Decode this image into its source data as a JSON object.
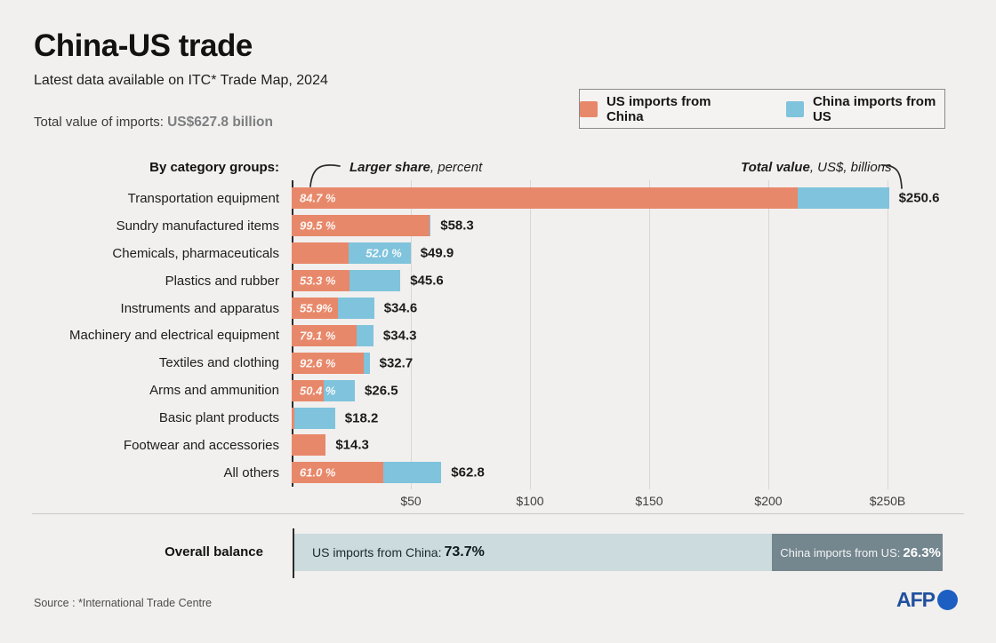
{
  "header": {
    "title": "China-US trade",
    "subtitle": "Latest data available on ITC* Trade Map, 2024",
    "total_label": "Total value of imports: ",
    "total_value": "US$627.8 billion"
  },
  "legend": {
    "items": [
      {
        "name": "us-imports-swatch",
        "label": "US imports from China",
        "color": "#e8886a"
      },
      {
        "name": "china-imports-swatch",
        "label": "China imports from US",
        "color": "#7fc3dc"
      }
    ]
  },
  "chart_data": {
    "type": "bar",
    "orientation": "horizontal-stacked",
    "group_title": "By category groups:",
    "annotation_left": {
      "bold": "Larger share",
      "rest": ", percent"
    },
    "annotation_right": {
      "bold": "Total value",
      "rest": ", US$, billions"
    },
    "unit": "US$ billions",
    "xlim": [
      0,
      250
    ],
    "x_tick_values": [
      50,
      100,
      150,
      200,
      250
    ],
    "x_tick_labels": [
      "$50",
      "$100",
      "$150",
      "$200",
      "$250B"
    ],
    "series_names": [
      "US imports from China",
      "China imports from US"
    ],
    "rows": [
      {
        "category": "Transportation equipment",
        "total": 250.6,
        "total_label": "$250.6",
        "share_label": "84.7 %",
        "share_side": "orange",
        "us_share_pct": 84.7,
        "china_share_pct": 15.3
      },
      {
        "category": "Sundry manufactured items",
        "total": 58.3,
        "total_label": "$58.3",
        "share_label": "99.5 %",
        "share_side": "orange",
        "us_share_pct": 99.5,
        "china_share_pct": 0.5
      },
      {
        "category": "Chemicals, pharmaceuticals",
        "total": 49.9,
        "total_label": "$49.9",
        "share_label": "52.0 %",
        "share_side": "blue",
        "us_share_pct": 48.0,
        "china_share_pct": 52.0
      },
      {
        "category": "Plastics and rubber",
        "total": 45.6,
        "total_label": "$45.6",
        "share_label": "53.3 %",
        "share_side": "orange",
        "us_share_pct": 53.3,
        "china_share_pct": 46.7
      },
      {
        "category": "Instruments and apparatus",
        "total": 34.6,
        "total_label": "$34.6",
        "share_label": "55.9%",
        "share_side": "orange",
        "us_share_pct": 55.9,
        "china_share_pct": 44.1
      },
      {
        "category": "Machinery and electrical equipment",
        "total": 34.3,
        "total_label": "$34.3",
        "share_label": "79.1 %",
        "share_side": "orange",
        "us_share_pct": 79.1,
        "china_share_pct": 20.9
      },
      {
        "category": "Textiles and clothing",
        "total": 32.7,
        "total_label": "$32.7",
        "share_label": "92.6 %",
        "share_side": "orange",
        "us_share_pct": 92.6,
        "china_share_pct": 7.4
      },
      {
        "category": "Arms and ammunition",
        "total": 26.5,
        "total_label": "$26.5",
        "share_label": "50.4 %",
        "share_side": "orange",
        "us_share_pct": 50.4,
        "china_share_pct": 49.6
      },
      {
        "category": "Basic plant products",
        "total": 18.2,
        "total_label": "$18.2",
        "share_label": "",
        "share_side": "blue",
        "us_share_pct": 6.0,
        "china_share_pct": 94.0
      },
      {
        "category": "Footwear and accessories",
        "total": 14.3,
        "total_label": "$14.3",
        "share_label": "",
        "share_side": "orange",
        "us_share_pct": 100.0,
        "china_share_pct": 0.0
      },
      {
        "category": "All others",
        "total": 62.8,
        "total_label": "$62.8",
        "share_label": "61.0 %",
        "share_side": "orange",
        "us_share_pct": 61.0,
        "china_share_pct": 39.0
      }
    ]
  },
  "balance": {
    "label": "Overall balance",
    "left_text": "US imports from China: ",
    "left_value": "73.7%",
    "left_pct": 73.7,
    "right_text": "China imports from US: ",
    "right_value": "26.3%",
    "right_pct": 26.3
  },
  "footer": {
    "source": "Source : *International Trade Centre",
    "logo_text": "AFP"
  },
  "colors": {
    "background": "#f1f0ee",
    "us_imports": "#e8886a",
    "china_imports": "#7fc3dc",
    "balance_left": "#cbdbde",
    "balance_right": "#74868e",
    "gridline": "#d8d7d3",
    "axis": "#2b2b29",
    "afp_blue": "#21509f"
  }
}
